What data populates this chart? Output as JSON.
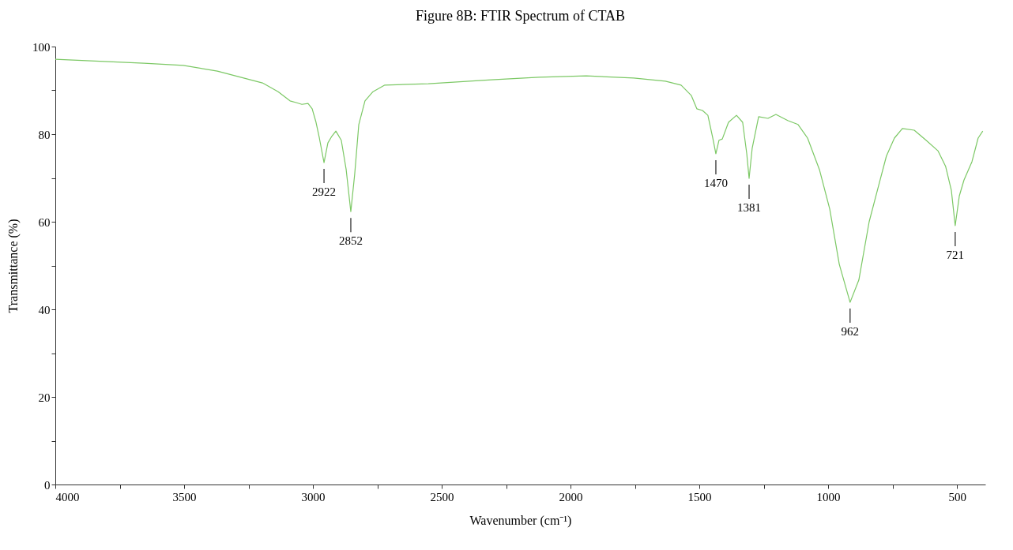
{
  "chart_data": {
    "type": "line",
    "title": "Figure 8B: FTIR Spectrum of CTAB",
    "xlabel": "Wavenumber (cm⁻¹)",
    "ylabel": "Transmittance (%)",
    "x": [
      4000,
      3810,
      3656,
      3503,
      3371,
      3196,
      3135,
      3089,
      3065,
      3043,
      3019,
      3003,
      2988,
      2975,
      2957,
      2942,
      2927,
      2911,
      2890,
      2871,
      2853,
      2838,
      2822,
      2798,
      2767,
      2721,
      2552,
      2307,
      2123,
      1939,
      1755,
      1632,
      1571,
      1531,
      1510,
      1488,
      1467,
      1448,
      1436,
      1424,
      1411,
      1387,
      1356,
      1332,
      1316,
      1307,
      1295,
      1270,
      1234,
      1203,
      1157,
      1117,
      1080,
      1034,
      994,
      957,
      915,
      881,
      841,
      804,
      774,
      743,
      712,
      666,
      620,
      574,
      544,
      522,
      507,
      491,
      473,
      442,
      418,
      400
    ],
    "series": [
      {
        "color": "#7cc865",
        "values": [
          97.1,
          96.6,
          96.2,
          95.7,
          94.4,
          91.7,
          89.7,
          87.6,
          87.2,
          86.8,
          87.0,
          85.8,
          82.7,
          79.1,
          73.5,
          78.0,
          79.5,
          80.7,
          78.6,
          71.9,
          62.3,
          70.8,
          82.2,
          87.6,
          89.7,
          91.2,
          91.5,
          92.4,
          93.0,
          93.3,
          92.8,
          92.1,
          91.2,
          88.8,
          85.8,
          85.4,
          84.3,
          79.1,
          75.5,
          78.6,
          78.9,
          82.7,
          84.3,
          82.7,
          75.5,
          69.9,
          76.8,
          84.0,
          83.6,
          84.5,
          83.1,
          82.2,
          79.1,
          71.9,
          62.9,
          50.3,
          41.6,
          46.7,
          60.0,
          68.3,
          75.0,
          79.1,
          81.3,
          80.9,
          78.6,
          76.2,
          72.6,
          67.2,
          59.1,
          65.9,
          69.5,
          73.7,
          79.1,
          80.7
        ]
      }
    ],
    "xlim": [
      4000,
      390
    ],
    "ylim": [
      0,
      100
    ],
    "xticks": [
      4000,
      {
        "value": 3750,
        "label": null
      },
      3500,
      {
        "value": 3250,
        "label": null
      },
      3000,
      {
        "value": 2750,
        "label": null
      },
      2500,
      {
        "value": 2250,
        "label": null
      },
      2000,
      {
        "value": 1750,
        "label": null
      },
      1500,
      {
        "value": 1250,
        "label": null
      },
      1000,
      {
        "value": 750,
        "label": null
      },
      500
    ],
    "yticks": [
      0,
      {
        "value": 10,
        "label": null
      },
      20,
      {
        "value": 30,
        "label": null
      },
      40,
      {
        "value": 50,
        "label": null
      },
      60,
      {
        "value": 70,
        "label": null
      },
      80,
      {
        "value": 90,
        "label": null
      },
      100
    ],
    "annotations": [
      {
        "text": "2922",
        "x": 2957,
        "y": 73.5
      },
      {
        "text": "2852",
        "x": 2853,
        "y": 62.3
      },
      {
        "text": "1470",
        "x": 1436,
        "y": 75.5
      },
      {
        "text": "1381",
        "x": 1307,
        "y": 69.9
      },
      {
        "text": "962",
        "x": 915,
        "y": 41.6
      },
      {
        "text": "721",
        "x": 507,
        "y": 59.1
      }
    ]
  }
}
